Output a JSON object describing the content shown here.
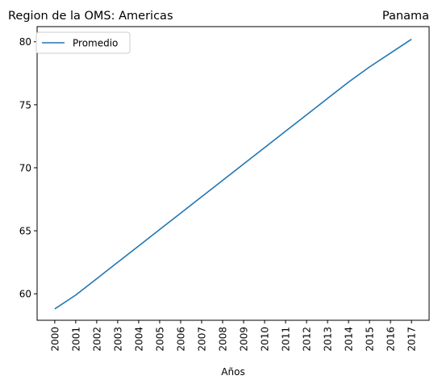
{
  "chart_data": {
    "type": "line",
    "title_left": "Region de la OMS: Americas",
    "title_right": "Panama",
    "xlabel": "Años",
    "ylabel": "",
    "x": [
      2000,
      2001,
      2002,
      2003,
      2004,
      2005,
      2006,
      2007,
      2008,
      2009,
      2010,
      2011,
      2012,
      2013,
      2014,
      2015,
      2016,
      2017
    ],
    "xticks": [
      "2000",
      "2001",
      "2002",
      "2003",
      "2004",
      "2005",
      "2006",
      "2007",
      "2008",
      "2009",
      "2010",
      "2011",
      "2012",
      "2013",
      "2014",
      "2015",
      "2016",
      "2017"
    ],
    "yticks": [
      60,
      65,
      70,
      75,
      80
    ],
    "ylim": [
      57.9,
      81.2
    ],
    "grid": false,
    "legend_position": "upper-left",
    "series": [
      {
        "name": "Promedio",
        "color": "#1f77b4",
        "values": [
          58.8,
          59.9,
          61.2,
          62.5,
          63.8,
          65.1,
          66.4,
          67.7,
          69.0,
          70.3,
          71.6,
          72.9,
          74.2,
          75.5,
          76.8,
          78.0,
          79.1,
          80.2
        ]
      }
    ]
  }
}
